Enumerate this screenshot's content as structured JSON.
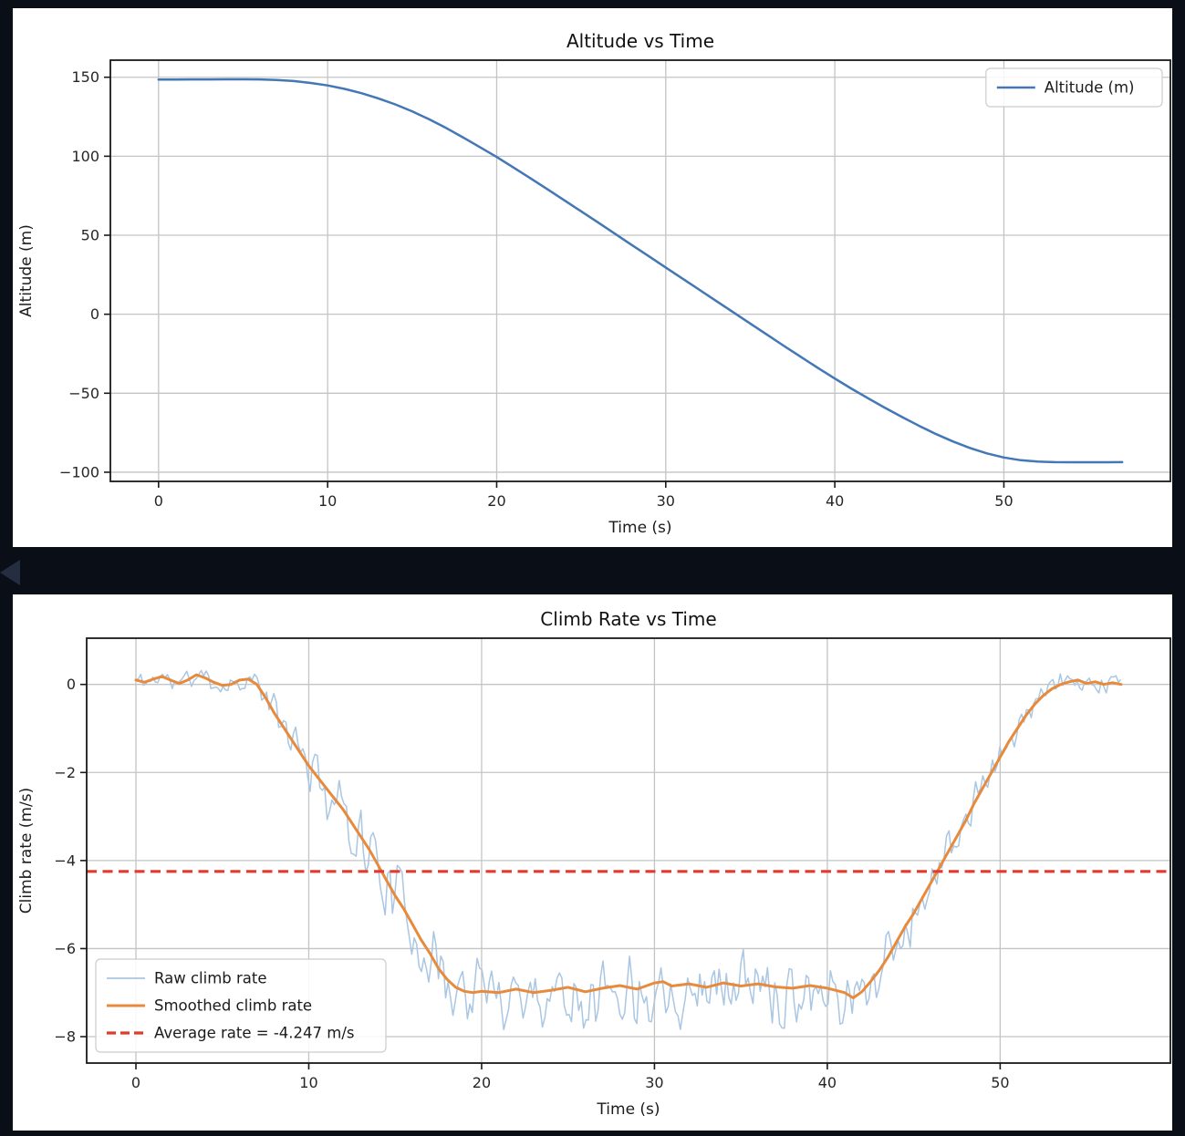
{
  "style": {
    "page_bg": "#0a0e17",
    "figure_bg": "#ffffff",
    "grid_color": "#c4c4c4",
    "spine_color": "#1a1a1a",
    "tick_text_color": "#262626",
    "collapse_arrow_color": "#242e40",
    "altitude_blue": "#4377b6",
    "raw_blue": "#a9c6e3",
    "smoothed_orange": "#e88a3c",
    "average_red": "#e23b2d"
  },
  "chart_data": [
    {
      "type": "line",
      "title": "Altitude vs Time",
      "xlabel": "Time (s)",
      "ylabel": "Altitude (m)",
      "xlim": [
        -2.85,
        59.85
      ],
      "ylim": [
        -105.8,
        160.8
      ],
      "xticks": [
        0,
        10,
        20,
        30,
        40,
        50
      ],
      "yticks": [
        150,
        100,
        50,
        0,
        -50,
        -100
      ],
      "grid": true,
      "legend": {
        "position": "upper right",
        "entries": [
          {
            "label": "Altitude (m)",
            "color": "#4377b6",
            "style": "solid",
            "width": 2.5
          }
        ]
      },
      "series": [
        {
          "kind": "xy",
          "name": "Altitude (m)",
          "color": "#4377b6",
          "width": 2.5,
          "x": [
            0,
            1,
            2,
            3,
            4,
            5,
            6,
            7,
            8,
            9,
            10,
            11,
            12,
            13,
            14,
            15,
            16,
            17,
            18,
            19,
            20,
            21,
            22,
            23,
            24,
            25,
            26,
            27,
            28,
            29,
            30,
            31,
            32,
            33,
            34,
            35,
            36,
            37,
            38,
            39,
            40,
            41,
            42,
            43,
            44,
            45,
            46,
            47,
            48,
            49,
            50,
            51,
            52,
            53,
            54,
            55,
            56,
            57
          ],
          "y": [
            148.5,
            148.5,
            148.6,
            148.6,
            148.7,
            148.7,
            148.6,
            148.3,
            147.6,
            146.4,
            144.8,
            142.6,
            139.9,
            136.6,
            132.8,
            128.4,
            123.4,
            117.9,
            112.0,
            105.8,
            99.5,
            92.8,
            86.0,
            79.1,
            72.1,
            65.1,
            58.0,
            50.9,
            43.8,
            36.7,
            29.6,
            22.5,
            15.4,
            8.3,
            1.2,
            -5.9,
            -13.0,
            -20.1,
            -27.1,
            -34.0,
            -40.7,
            -47.2,
            -53.4,
            -59.4,
            -65.2,
            -70.7,
            -75.9,
            -80.6,
            -84.7,
            -88.1,
            -90.7,
            -92.4,
            -93.3,
            -93.6,
            -93.7,
            -93.7,
            -93.7,
            -93.6
          ]
        }
      ]
    },
    {
      "type": "line",
      "title": "Climb Rate vs Time",
      "xlabel": "Time (s)",
      "ylabel": "Climb rate (m/s)",
      "xlim": [
        -2.85,
        59.85
      ],
      "ylim": [
        -8.6,
        1.05
      ],
      "xticks": [
        0,
        10,
        20,
        30,
        40,
        50
      ],
      "yticks": [
        0,
        -2,
        -4,
        -6,
        -8
      ],
      "grid": true,
      "average_rate_mps": -4.247,
      "legend": {
        "position": "lower left",
        "entries": [
          {
            "label": "Raw climb rate",
            "color": "#a9c6e3",
            "style": "solid",
            "width": 1.8
          },
          {
            "label": "Smoothed climb rate",
            "color": "#e88a3c",
            "style": "solid",
            "width": 3
          },
          {
            "label": "Average rate = -4.247 m/s",
            "color": "#e23b2d",
            "style": "dashed",
            "width": 3.2
          }
        ]
      },
      "series": [
        {
          "kind": "noisy",
          "name": "Raw climb rate",
          "color": "#a9c6e3",
          "width": 1.5,
          "base_index": 1,
          "noise": {
            "seed": 11,
            "dt": 0.14,
            "tmax": 57,
            "spike_chance": 0.07,
            "spike_gain": 1.5,
            "amp_t": [
              0,
              6,
              13,
              42,
              50,
              57
            ],
            "amp_v": [
              0.3,
              0.3,
              0.95,
              0.95,
              0.35,
              0.3
            ]
          }
        },
        {
          "kind": "xy",
          "name": "Smoothed climb rate",
          "color": "#e88a3c",
          "width": 3,
          "x": [
            0,
            0.5,
            1,
            1.5,
            2,
            2.5,
            3,
            3.5,
            4,
            4.5,
            5,
            5.5,
            6,
            6.5,
            7,
            7.5,
            8,
            8.5,
            9,
            9.5,
            10,
            10.5,
            11,
            11.5,
            12,
            12.5,
            13,
            13.5,
            14,
            14.5,
            15,
            15.5,
            16,
            16.5,
            17,
            17.5,
            18,
            18.5,
            19,
            19.5,
            20,
            21,
            22,
            23,
            24,
            25,
            26,
            27,
            28,
            29,
            30,
            30.5,
            31,
            32,
            33,
            34,
            35,
            36,
            37,
            38,
            39,
            40,
            40.5,
            41,
            41.5,
            42,
            42.5,
            43,
            43.5,
            44,
            44.5,
            45,
            45.5,
            46,
            46.5,
            47,
            47.5,
            48,
            48.5,
            49,
            49.5,
            50,
            50.5,
            51,
            51.5,
            52,
            52.5,
            53,
            53.5,
            54,
            54.5,
            55,
            55.5,
            56,
            56.5,
            57
          ],
          "y": [
            0.1,
            0.05,
            0.12,
            0.18,
            0.1,
            0.02,
            0.1,
            0.22,
            0.15,
            0.05,
            -0.02,
            0,
            0.1,
            0.12,
            0,
            -0.3,
            -0.65,
            -0.95,
            -1.25,
            -1.55,
            -1.85,
            -2.1,
            -2.35,
            -2.6,
            -2.85,
            -3.15,
            -3.45,
            -3.75,
            -4.1,
            -4.45,
            -4.8,
            -5.1,
            -5.45,
            -5.8,
            -6.1,
            -6.45,
            -6.7,
            -6.88,
            -6.97,
            -7.0,
            -6.97,
            -7.0,
            -6.92,
            -7.0,
            -6.95,
            -6.88,
            -6.98,
            -6.9,
            -6.84,
            -6.92,
            -6.78,
            -6.75,
            -6.85,
            -6.8,
            -6.88,
            -6.78,
            -6.85,
            -6.8,
            -6.87,
            -6.9,
            -6.84,
            -6.9,
            -6.95,
            -7.0,
            -7.12,
            -6.98,
            -6.75,
            -6.5,
            -6.2,
            -5.85,
            -5.5,
            -5.2,
            -4.85,
            -4.5,
            -4.15,
            -3.8,
            -3.45,
            -3.1,
            -2.7,
            -2.35,
            -2.0,
            -1.65,
            -1.3,
            -1.0,
            -0.7,
            -0.45,
            -0.25,
            -0.1,
            0,
            0.06,
            0.1,
            0.02,
            0.06,
            0,
            0.04,
            0
          ]
        },
        {
          "kind": "hline",
          "name": "Average rate",
          "value": -4.247,
          "color": "#e23b2d",
          "width": 3.2,
          "dash": [
            11,
            6.5
          ]
        }
      ]
    }
  ]
}
